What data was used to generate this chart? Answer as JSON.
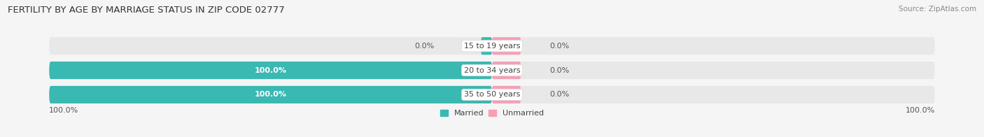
{
  "title": "FERTILITY BY AGE BY MARRIAGE STATUS IN ZIP CODE 02777",
  "source": "Source: ZipAtlas.com",
  "rows": [
    {
      "label": "15 to 19 years",
      "married": 0.0,
      "unmarried": 0.0
    },
    {
      "label": "20 to 34 years",
      "married": 100.0,
      "unmarried": 0.0
    },
    {
      "label": "35 to 50 years",
      "married": 100.0,
      "unmarried": 0.0
    }
  ],
  "married_color": "#3ab8b2",
  "unmarried_color": "#f5a0b5",
  "bar_bg_color": "#e8e8e8",
  "title_fontsize": 9.5,
  "source_fontsize": 7.5,
  "tick_fontsize": 8,
  "bar_label_fontsize": 8,
  "category_fontsize": 8,
  "x_left_label": "100.0%",
  "x_right_label": "100.0%",
  "legend_married": "Married",
  "legend_unmarried": "Unmarried",
  "background_color": "#f5f5f5",
  "text_color": "#555555",
  "bar_label_white_color": "#ffffff"
}
